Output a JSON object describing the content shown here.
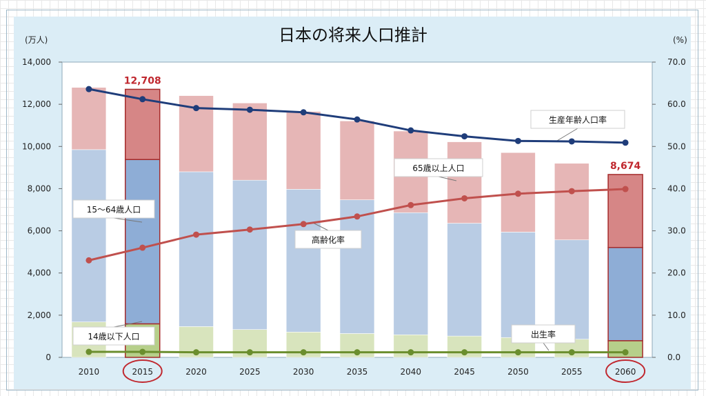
{
  "title": "日本の将来人口推計",
  "left_unit": "(万人)",
  "right_unit": "(%)",
  "colors": {
    "panel_bg": "#dbedf6",
    "elderly_light": "#e6b6b6",
    "elderly_dark": "#d68686",
    "working_light": "#b9cce4",
    "working_dark": "#8eadd6",
    "child_light": "#d8e4bd",
    "child_dark": "#b6cf8a",
    "highlight_border": "#a52a2a",
    "working_ratio_line": "#1f3d7a",
    "aging_ratio_line": "#c0504d",
    "birth_rate_line": "#6b8e2e",
    "total_label": "#c0282f",
    "circle": "#c0282f"
  },
  "chart_data": {
    "type": "bar",
    "stacked": true,
    "categories": [
      "2010",
      "2015",
      "2020",
      "2025",
      "2030",
      "2035",
      "2040",
      "2045",
      "2050",
      "2055",
      "2060"
    ],
    "highlighted_categories": [
      "2015",
      "2060"
    ],
    "series": [
      {
        "name": "14歳以下人口",
        "axis": "left",
        "values": [
          1680,
          1590,
          1460,
          1320,
          1200,
          1130,
          1070,
          1010,
          940,
          860,
          790
        ]
      },
      {
        "name": "15〜64歳人口",
        "axis": "left",
        "values": [
          8170,
          7790,
          7340,
          7080,
          6770,
          6340,
          5790,
          5350,
          5000,
          4710,
          4420
        ]
      },
      {
        "name": "65歳以上人口",
        "axis": "left",
        "values": [
          2950,
          3330,
          3610,
          3660,
          3690,
          3740,
          3870,
          3860,
          3770,
          3630,
          3460
        ]
      },
      {
        "name": "生産年齢人口率",
        "type": "line",
        "axis": "right",
        "values": [
          63.6,
          61.2,
          59.1,
          58.7,
          58.1,
          56.4,
          53.8,
          52.4,
          51.3,
          51.2,
          50.9
        ]
      },
      {
        "name": "高齢化率",
        "type": "line",
        "axis": "right",
        "values": [
          23.0,
          26.0,
          29.1,
          30.3,
          31.6,
          33.4,
          36.1,
          37.7,
          38.8,
          39.4,
          39.9
        ]
      },
      {
        "name": "出生率",
        "type": "line",
        "axis": "right",
        "values": [
          1.3,
          1.3,
          1.2,
          1.2,
          1.2,
          1.2,
          1.2,
          1.2,
          1.2,
          1.2,
          1.2
        ]
      }
    ],
    "total_labels": [
      {
        "category": "2015",
        "text": "12,708"
      },
      {
        "category": "2060",
        "text": "8,674"
      }
    ],
    "left_axis": {
      "min": 0,
      "max": 14000,
      "step": 2000,
      "ticks": [
        "0",
        "2,000",
        "4,000",
        "6,000",
        "8,000",
        "10,000",
        "12,000",
        "14,000"
      ]
    },
    "right_axis": {
      "min": 0,
      "max": 70,
      "step": 10,
      "ticks": [
        "0.0",
        "10.0",
        "20.0",
        "30.0",
        "40.0",
        "50.0",
        "60.0",
        "70.0"
      ]
    },
    "callouts": {
      "working_ratio": "生産年齢人口率",
      "elderly": "65歳以上人口",
      "working": "15～64歳人口",
      "aging_ratio": "高齢化率",
      "child": "14歳以下人口",
      "birth_rate": "出生率"
    },
    "grid": false,
    "legend": "callouts"
  }
}
